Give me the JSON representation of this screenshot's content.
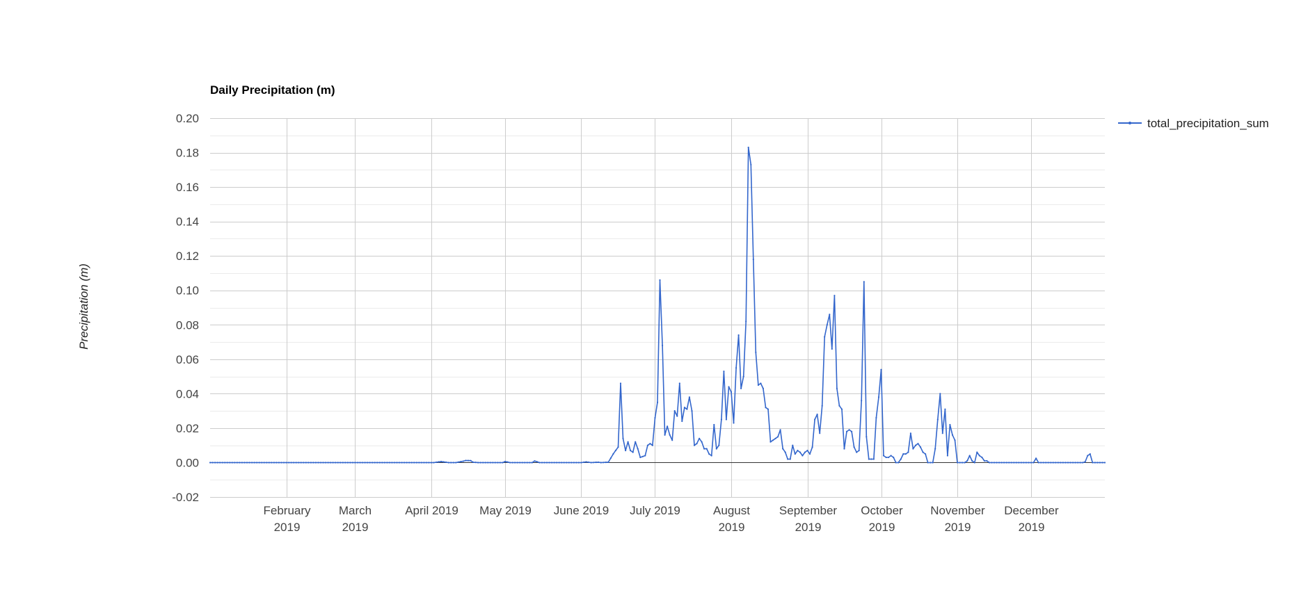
{
  "chart_data": {
    "type": "line",
    "title": "Daily Precipitation (m)",
    "ylabel": "Precipitation (m)",
    "xlabel": "",
    "ylim": [
      -0.02,
      0.2
    ],
    "yticks": [
      "0.20",
      "0.18",
      "0.16",
      "0.14",
      "0.12",
      "0.10",
      "0.08",
      "0.06",
      "0.04",
      "0.02",
      "0.00",
      "-0.02"
    ],
    "xlim": [
      "2019-01-01",
      "2019-12-31"
    ],
    "xticks": [
      {
        "date": "2019-02-01",
        "line1": "February",
        "line2": "2019"
      },
      {
        "date": "2019-03-01",
        "line1": "March",
        "line2": "2019"
      },
      {
        "date": "2019-04-01",
        "line1": "April 2019",
        "line2": ""
      },
      {
        "date": "2019-05-01",
        "line1": "May 2019",
        "line2": ""
      },
      {
        "date": "2019-06-01",
        "line1": "June 2019",
        "line2": ""
      },
      {
        "date": "2019-07-01",
        "line1": "July 2019",
        "line2": ""
      },
      {
        "date": "2019-08-01",
        "line1": "August",
        "line2": "2019"
      },
      {
        "date": "2019-09-01",
        "line1": "September",
        "line2": "2019"
      },
      {
        "date": "2019-10-01",
        "line1": "October",
        "line2": "2019"
      },
      {
        "date": "2019-11-01",
        "line1": "November",
        "line2": "2019"
      },
      {
        "date": "2019-12-01",
        "line1": "December",
        "line2": "2019"
      }
    ],
    "grid": true,
    "legend_position": "right",
    "series": [
      {
        "name": "total_precipitation_sum",
        "color": "#3366cc",
        "points": [
          [
            "2019-01-01",
            0.0
          ],
          [
            "2019-04-02",
            0.0
          ],
          [
            "2019-04-05",
            0.0006
          ],
          [
            "2019-04-08",
            0.0
          ],
          [
            "2019-04-11",
            0.0
          ],
          [
            "2019-04-14",
            0.0008
          ],
          [
            "2019-04-15",
            0.0012
          ],
          [
            "2019-04-17",
            0.0011
          ],
          [
            "2019-04-18",
            0.0002
          ],
          [
            "2019-04-20",
            0.0
          ],
          [
            "2019-04-30",
            0.0
          ],
          [
            "2019-05-01",
            0.0006
          ],
          [
            "2019-05-03",
            0.0
          ],
          [
            "2019-05-12",
            0.0
          ],
          [
            "2019-05-13",
            0.0009
          ],
          [
            "2019-05-15",
            0.0
          ],
          [
            "2019-06-01",
            0.0
          ],
          [
            "2019-06-03",
            0.0004
          ],
          [
            "2019-06-05",
            0.0
          ],
          [
            "2019-06-08",
            0.0002
          ],
          [
            "2019-06-09",
            0.0
          ],
          [
            "2019-06-12",
            0.0002
          ],
          [
            "2019-06-14",
            0.005
          ],
          [
            "2019-06-16",
            0.009
          ],
          [
            "2019-06-17",
            0.046
          ],
          [
            "2019-06-18",
            0.014
          ],
          [
            "2019-06-19",
            0.007
          ],
          [
            "2019-06-20",
            0.012
          ],
          [
            "2019-06-21",
            0.007
          ],
          [
            "2019-06-22",
            0.006
          ],
          [
            "2019-06-23",
            0.012
          ],
          [
            "2019-06-24",
            0.008
          ],
          [
            "2019-06-25",
            0.003
          ],
          [
            "2019-06-27",
            0.004
          ],
          [
            "2019-06-28",
            0.01
          ],
          [
            "2019-06-29",
            0.011
          ],
          [
            "2019-06-30",
            0.01
          ],
          [
            "2019-07-01",
            0.026
          ],
          [
            "2019-07-02",
            0.035
          ],
          [
            "2019-07-03",
            0.106
          ],
          [
            "2019-07-04",
            0.068
          ],
          [
            "2019-07-05",
            0.016
          ],
          [
            "2019-07-06",
            0.021
          ],
          [
            "2019-07-07",
            0.016
          ],
          [
            "2019-07-08",
            0.013
          ],
          [
            "2019-07-09",
            0.03
          ],
          [
            "2019-07-10",
            0.027
          ],
          [
            "2019-07-11",
            0.046
          ],
          [
            "2019-07-12",
            0.024
          ],
          [
            "2019-07-13",
            0.032
          ],
          [
            "2019-07-14",
            0.031
          ],
          [
            "2019-07-15",
            0.038
          ],
          [
            "2019-07-16",
            0.03
          ],
          [
            "2019-07-17",
            0.01
          ],
          [
            "2019-07-18",
            0.011
          ],
          [
            "2019-07-19",
            0.014
          ],
          [
            "2019-07-20",
            0.012
          ],
          [
            "2019-07-21",
            0.008
          ],
          [
            "2019-07-22",
            0.008
          ],
          [
            "2019-07-23",
            0.005
          ],
          [
            "2019-07-24",
            0.004
          ],
          [
            "2019-07-25",
            0.022
          ],
          [
            "2019-07-26",
            0.008
          ],
          [
            "2019-07-27",
            0.01
          ],
          [
            "2019-07-28",
            0.025
          ],
          [
            "2019-07-29",
            0.053
          ],
          [
            "2019-07-30",
            0.025
          ],
          [
            "2019-07-31",
            0.044
          ],
          [
            "2019-08-01",
            0.041
          ],
          [
            "2019-08-02",
            0.023
          ],
          [
            "2019-08-03",
            0.055
          ],
          [
            "2019-08-04",
            0.074
          ],
          [
            "2019-08-05",
            0.043
          ],
          [
            "2019-08-06",
            0.05
          ],
          [
            "2019-08-07",
            0.082
          ],
          [
            "2019-08-08",
            0.183
          ],
          [
            "2019-08-09",
            0.173
          ],
          [
            "2019-08-10",
            0.118
          ],
          [
            "2019-08-11",
            0.064
          ],
          [
            "2019-08-12",
            0.045
          ],
          [
            "2019-08-13",
            0.046
          ],
          [
            "2019-08-14",
            0.043
          ],
          [
            "2019-08-15",
            0.032
          ],
          [
            "2019-08-16",
            0.031
          ],
          [
            "2019-08-17",
            0.012
          ],
          [
            "2019-08-18",
            0.013
          ],
          [
            "2019-08-19",
            0.014
          ],
          [
            "2019-08-20",
            0.015
          ],
          [
            "2019-08-21",
            0.019
          ],
          [
            "2019-08-22",
            0.008
          ],
          [
            "2019-08-23",
            0.006
          ],
          [
            "2019-08-24",
            0.002
          ],
          [
            "2019-08-25",
            0.002
          ],
          [
            "2019-08-26",
            0.01
          ],
          [
            "2019-08-27",
            0.005
          ],
          [
            "2019-08-28",
            0.007
          ],
          [
            "2019-08-29",
            0.006
          ],
          [
            "2019-08-30",
            0.004
          ],
          [
            "2019-08-31",
            0.006
          ],
          [
            "2019-09-01",
            0.007
          ],
          [
            "2019-09-02",
            0.005
          ],
          [
            "2019-09-03",
            0.009
          ],
          [
            "2019-09-04",
            0.025
          ],
          [
            "2019-09-05",
            0.028
          ],
          [
            "2019-09-06",
            0.017
          ],
          [
            "2019-09-07",
            0.033
          ],
          [
            "2019-09-08",
            0.073
          ],
          [
            "2019-09-09",
            0.08
          ],
          [
            "2019-09-10",
            0.086
          ],
          [
            "2019-09-11",
            0.066
          ],
          [
            "2019-09-12",
            0.097
          ],
          [
            "2019-09-13",
            0.043
          ],
          [
            "2019-09-14",
            0.033
          ],
          [
            "2019-09-15",
            0.031
          ],
          [
            "2019-09-16",
            0.008
          ],
          [
            "2019-09-17",
            0.018
          ],
          [
            "2019-09-18",
            0.019
          ],
          [
            "2019-09-19",
            0.018
          ],
          [
            "2019-09-20",
            0.009
          ],
          [
            "2019-09-21",
            0.006
          ],
          [
            "2019-09-22",
            0.007
          ],
          [
            "2019-09-23",
            0.036
          ],
          [
            "2019-09-24",
            0.105
          ],
          [
            "2019-09-25",
            0.015
          ],
          [
            "2019-09-26",
            0.002
          ],
          [
            "2019-09-28",
            0.002
          ],
          [
            "2019-09-29",
            0.026
          ],
          [
            "2019-09-30",
            0.038
          ],
          [
            "2019-10-01",
            0.054
          ],
          [
            "2019-10-02",
            0.004
          ],
          [
            "2019-10-03",
            0.003
          ],
          [
            "2019-10-04",
            0.003
          ],
          [
            "2019-10-05",
            0.004
          ],
          [
            "2019-10-06",
            0.003
          ],
          [
            "2019-10-07",
            0.0
          ],
          [
            "2019-10-08",
            0.0
          ],
          [
            "2019-10-09",
            0.002
          ],
          [
            "2019-10-10",
            0.005
          ],
          [
            "2019-10-11",
            0.005
          ],
          [
            "2019-10-12",
            0.006
          ],
          [
            "2019-10-13",
            0.017
          ],
          [
            "2019-10-14",
            0.008
          ],
          [
            "2019-10-15",
            0.01
          ],
          [
            "2019-10-16",
            0.011
          ],
          [
            "2019-10-17",
            0.009
          ],
          [
            "2019-10-18",
            0.006
          ],
          [
            "2019-10-19",
            0.005
          ],
          [
            "2019-10-20",
            0.0
          ],
          [
            "2019-10-22",
            0.0
          ],
          [
            "2019-10-23",
            0.008
          ],
          [
            "2019-10-24",
            0.025
          ],
          [
            "2019-10-25",
            0.04
          ],
          [
            "2019-10-26",
            0.017
          ],
          [
            "2019-10-27",
            0.031
          ],
          [
            "2019-10-28",
            0.004
          ],
          [
            "2019-10-29",
            0.022
          ],
          [
            "2019-10-30",
            0.016
          ],
          [
            "2019-10-31",
            0.013
          ],
          [
            "2019-11-01",
            0.0
          ],
          [
            "2019-11-04",
            0.0
          ],
          [
            "2019-11-05",
            0.001
          ],
          [
            "2019-11-06",
            0.004
          ],
          [
            "2019-11-07",
            0.001
          ],
          [
            "2019-11-08",
            0.0
          ],
          [
            "2019-11-09",
            0.006
          ],
          [
            "2019-11-10",
            0.004
          ],
          [
            "2019-11-11",
            0.003
          ],
          [
            "2019-11-12",
            0.001
          ],
          [
            "2019-11-13",
            0.001
          ],
          [
            "2019-11-14",
            0.0
          ],
          [
            "2019-12-01",
            0.0
          ],
          [
            "2019-12-02",
            0.0
          ],
          [
            "2019-12-03",
            0.0025
          ],
          [
            "2019-12-04",
            0.0
          ],
          [
            "2019-12-22",
            0.0
          ],
          [
            "2019-12-23",
            0.0004
          ],
          [
            "2019-12-24",
            0.004
          ],
          [
            "2019-12-25",
            0.005
          ],
          [
            "2019-12-26",
            0.0
          ],
          [
            "2019-12-31",
            0.0
          ]
        ]
      }
    ]
  }
}
